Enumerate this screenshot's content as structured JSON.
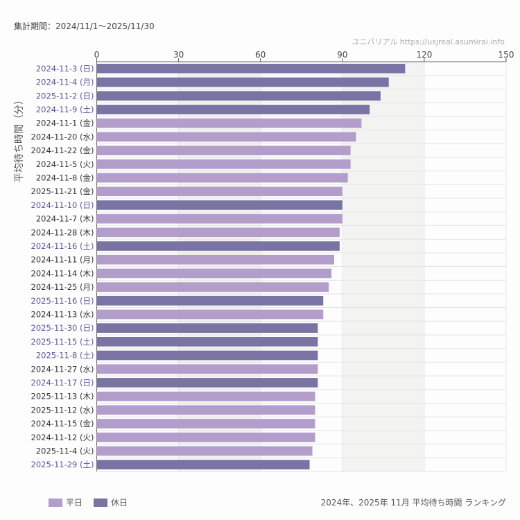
{
  "header": {
    "period": "集計期間：2024/11/1〜2025/11/30",
    "credit": "ユニバリアル  https://usjreal.asumirai.info"
  },
  "footer": {
    "caption": "2024年、2025年 11月 平均待ち時間 ランキング"
  },
  "colors": {
    "weekday": "#b39dcb",
    "holiday": "#7a74a4",
    "holiday_label": "#5c549a",
    "weekday_label": "#333333"
  },
  "chart_data": {
    "type": "bar",
    "orientation": "horizontal",
    "ylabel": "平均待ち時間（分）",
    "xlim": [
      0,
      150
    ],
    "xticks": [
      "0",
      "30",
      "60",
      "90",
      "120",
      "150"
    ],
    "legend": {
      "position": "bottom-left",
      "entries": [
        {
          "key": "weekday",
          "label": "平日"
        },
        {
          "key": "holiday",
          "label": "休日"
        }
      ]
    },
    "categories": [
      "2024-11-3 (日)",
      "2024-11-4 (月)",
      "2025-11-2 (日)",
      "2024-11-9 (土)",
      "2024-11-1 (金)",
      "2024-11-20 (水)",
      "2024-11-22 (金)",
      "2024-11-5 (火)",
      "2024-11-8 (金)",
      "2025-11-21 (金)",
      "2024-11-10 (日)",
      "2024-11-7 (木)",
      "2024-11-28 (木)",
      "2024-11-16 (土)",
      "2024-11-11 (月)",
      "2024-11-14 (木)",
      "2024-11-25 (月)",
      "2025-11-16 (日)",
      "2024-11-13 (水)",
      "2025-11-30 (日)",
      "2025-11-15 (土)",
      "2025-11-8 (土)",
      "2024-11-27 (水)",
      "2024-11-17 (日)",
      "2025-11-13 (木)",
      "2025-11-12 (水)",
      "2024-11-15 (金)",
      "2024-11-12 (火)",
      "2025-11-4 (火)",
      "2025-11-29 (土)"
    ],
    "values": [
      113,
      107,
      104,
      100,
      97,
      95,
      93,
      93,
      92,
      90,
      90,
      90,
      89,
      89,
      87,
      86,
      85,
      83,
      83,
      81,
      81,
      81,
      81,
      81,
      80,
      80,
      80,
      80,
      79,
      78
    ],
    "day_type": [
      "holiday",
      "holiday",
      "holiday",
      "holiday",
      "weekday",
      "weekday",
      "weekday",
      "weekday",
      "weekday",
      "weekday",
      "holiday",
      "weekday",
      "weekday",
      "holiday",
      "weekday",
      "weekday",
      "weekday",
      "holiday",
      "weekday",
      "holiday",
      "holiday",
      "holiday",
      "weekday",
      "holiday",
      "weekday",
      "weekday",
      "weekday",
      "weekday",
      "weekday",
      "holiday"
    ]
  }
}
